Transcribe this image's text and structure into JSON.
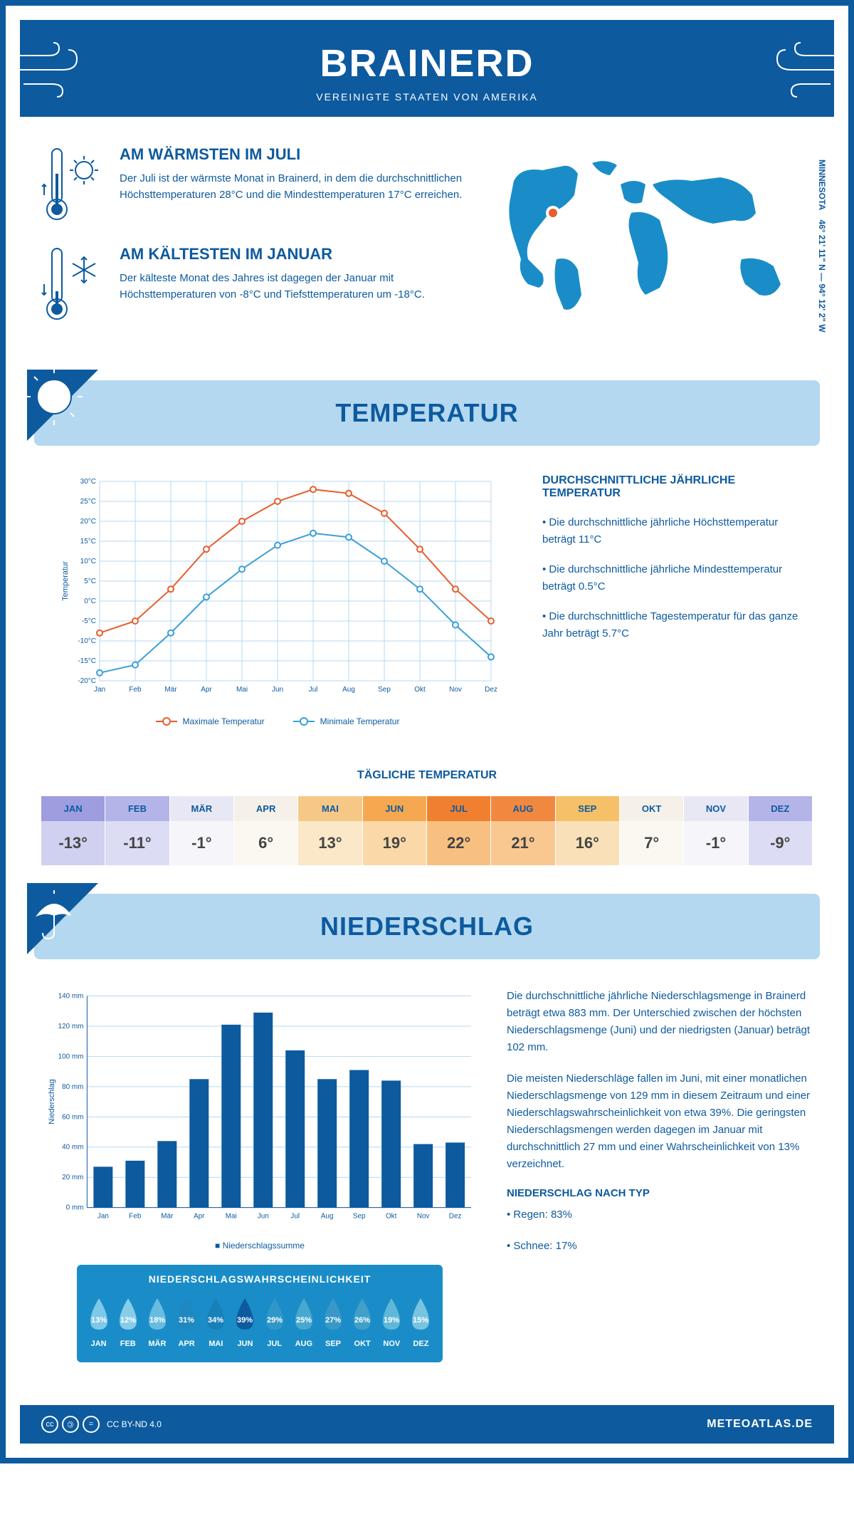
{
  "header": {
    "title": "BRAINERD",
    "subtitle": "VEREINIGTE STAATEN VON AMERIKA"
  },
  "intro": {
    "warmest": {
      "title": "AM WÄRMSTEN IM JULI",
      "text": "Der Juli ist der wärmste Monat in Brainerd, in dem die durchschnittlichen Höchsttemperaturen 28°C und die Mindesttemperaturen 17°C erreichen."
    },
    "coldest": {
      "title": "AM KÄLTESTEN IM JANUAR",
      "text": "Der kälteste Monat des Jahres ist dagegen der Januar mit Höchsttemperaturen von -8°C und Tiefsttemperaturen um -18°C."
    },
    "coords": "46° 21' 11\" N — 94° 12' 2\" W",
    "region": "MINNESOTA"
  },
  "temperature": {
    "section_title": "TEMPERATUR",
    "info_title": "DURCHSCHNITTLICHE JÄHRLICHE TEMPERATUR",
    "bullet1": "• Die durchschnittliche jährliche Höchsttemperatur beträgt 11°C",
    "bullet2": "• Die durchschnittliche jährliche Mindesttemperatur beträgt 0.5°C",
    "bullet3": "• Die durchschnittliche Tagestemperatur für das ganze Jahr beträgt 5.7°C",
    "chart": {
      "months": [
        "Jan",
        "Feb",
        "Mär",
        "Apr",
        "Mai",
        "Jun",
        "Jul",
        "Aug",
        "Sep",
        "Okt",
        "Nov",
        "Dez"
      ],
      "max_temp": [
        -8,
        -5,
        3,
        13,
        20,
        25,
        28,
        27,
        22,
        13,
        3,
        -5
      ],
      "min_temp": [
        -18,
        -16,
        -8,
        1,
        8,
        14,
        17,
        16,
        10,
        3,
        -6,
        -14
      ],
      "y_min": -20,
      "y_max": 30,
      "y_step": 5,
      "y_labels": [
        "-20°C",
        "-15°C",
        "-10°C",
        "-5°C",
        "0°C",
        "5°C",
        "10°C",
        "15°C",
        "20°C",
        "25°C",
        "30°C"
      ],
      "max_color": "#e85d2c",
      "min_color": "#3b9fd8",
      "grid_color": "#b4d8f0",
      "y_axis_title": "Temperatur"
    },
    "legend_max": "Maximale Temperatur",
    "legend_min": "Minimale Temperatur",
    "daily_title": "TÄGLICHE TEMPERATUR",
    "daily": {
      "months": [
        "JAN",
        "FEB",
        "MÄR",
        "APR",
        "MAI",
        "JUN",
        "JUL",
        "AUG",
        "SEP",
        "OKT",
        "NOV",
        "DEZ"
      ],
      "values": [
        "-13°",
        "-11°",
        "-1°",
        "6°",
        "13°",
        "19°",
        "22°",
        "21°",
        "16°",
        "7°",
        "-1°",
        "-9°"
      ],
      "header_colors": [
        "#9d9de0",
        "#b4b4e8",
        "#e8e8f5",
        "#f5f0e8",
        "#f5c888",
        "#f5a850",
        "#f08030",
        "#f08840",
        "#f5c068",
        "#f5f0e8",
        "#e8e8f5",
        "#b4b4e8"
      ],
      "value_colors": [
        "#d0d0f0",
        "#dcdcf5",
        "#f5f5fa",
        "#faf8f0",
        "#fae8c8",
        "#fad8a8",
        "#f8c080",
        "#f8c890",
        "#fae0b8",
        "#faf8f0",
        "#f5f5fa",
        "#dcdcf5"
      ]
    }
  },
  "precipitation": {
    "section_title": "NIEDERSCHLAG",
    "chart": {
      "months": [
        "Jan",
        "Feb",
        "Mär",
        "Apr",
        "Mai",
        "Jun",
        "Jul",
        "Aug",
        "Sep",
        "Okt",
        "Nov",
        "Dez"
      ],
      "values": [
        27,
        31,
        44,
        85,
        121,
        129,
        104,
        85,
        91,
        84,
        42,
        43
      ],
      "y_max": 140,
      "y_step": 20,
      "y_labels": [
        "0 mm",
        "20 mm",
        "40 mm",
        "60 mm",
        "80 mm",
        "100 mm",
        "120 mm",
        "140 mm"
      ],
      "bar_color": "#0d5a9f",
      "grid_color": "#b4d8f0",
      "y_axis_title": "Niederschlag"
    },
    "legend": "Niederschlagssumme",
    "para1": "Die durchschnittliche jährliche Niederschlagsmenge in Brainerd beträgt etwa 883 mm. Der Unterschied zwischen der höchsten Niederschlagsmenge (Juni) und der niedrigsten (Januar) beträgt 102 mm.",
    "para2": "Die meisten Niederschläge fallen im Juni, mit einer monatlichen Niederschlagsmenge von 129 mm in diesem Zeitraum und einer Niederschlagswahrscheinlichkeit von etwa 39%. Die geringsten Niederschlagsmengen werden dagegen im Januar mit durchschnittlich 27 mm und einer Wahrscheinlichkeit von 13% verzeichnet.",
    "type_title": "NIEDERSCHLAG NACH TYP",
    "type_rain": "• Regen: 83%",
    "type_snow": "• Schnee: 17%",
    "probability": {
      "title": "NIEDERSCHLAGSWAHRSCHEINLICHKEIT",
      "months": [
        "JAN",
        "FEB",
        "MÄR",
        "APR",
        "MAI",
        "JUN",
        "JUL",
        "AUG",
        "SEP",
        "OKT",
        "NOV",
        "DEZ"
      ],
      "values": [
        "13%",
        "12%",
        "18%",
        "31%",
        "34%",
        "39%",
        "29%",
        "25%",
        "27%",
        "26%",
        "19%",
        "15%"
      ],
      "drop_colors": [
        "#7ec8e8",
        "#88cce8",
        "#68bce0",
        "#2088c0",
        "#1880b8",
        "#0d5a9f",
        "#3098c8",
        "#48a8d0",
        "#3898c8",
        "#40a0c8",
        "#60b8d8",
        "#78c4e0"
      ]
    }
  },
  "footer": {
    "license": "CC BY-ND 4.0",
    "site": "METEOATLAS.DE"
  }
}
